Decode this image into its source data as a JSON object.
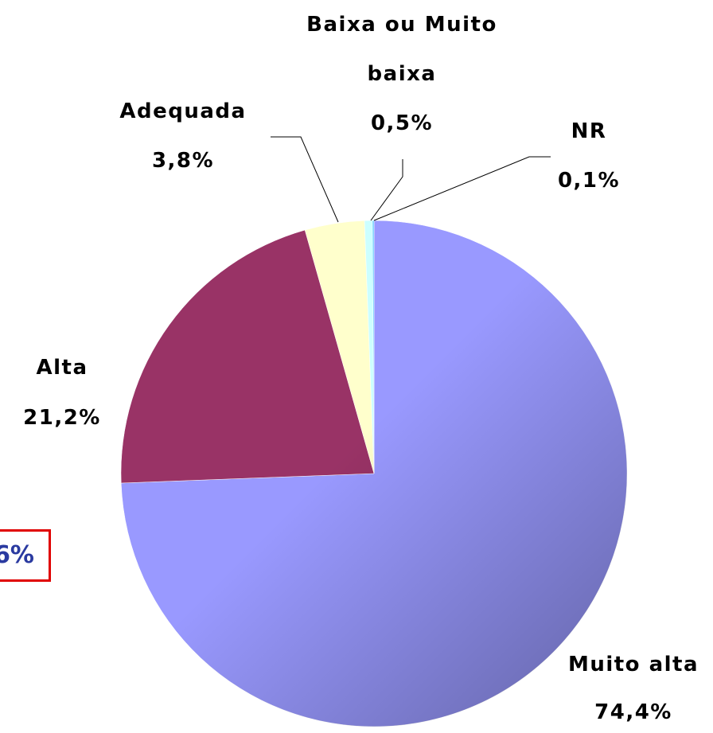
{
  "chart_data": {
    "type": "pie",
    "categories": [
      "Muito alta",
      "Alta",
      "Adequada",
      "Baixa ou Muito baixa",
      "NR"
    ],
    "values": [
      74.4,
      21.2,
      3.8,
      0.5,
      0.1
    ],
    "value_labels": [
      "74,4%",
      "21,2%",
      "3,8%",
      "0,5%",
      "0,1%"
    ],
    "colors": [
      "#9999ff",
      "#993366",
      "#ffffcc",
      "#ccffff",
      "#66ccff"
    ],
    "annotation": "6%"
  }
}
